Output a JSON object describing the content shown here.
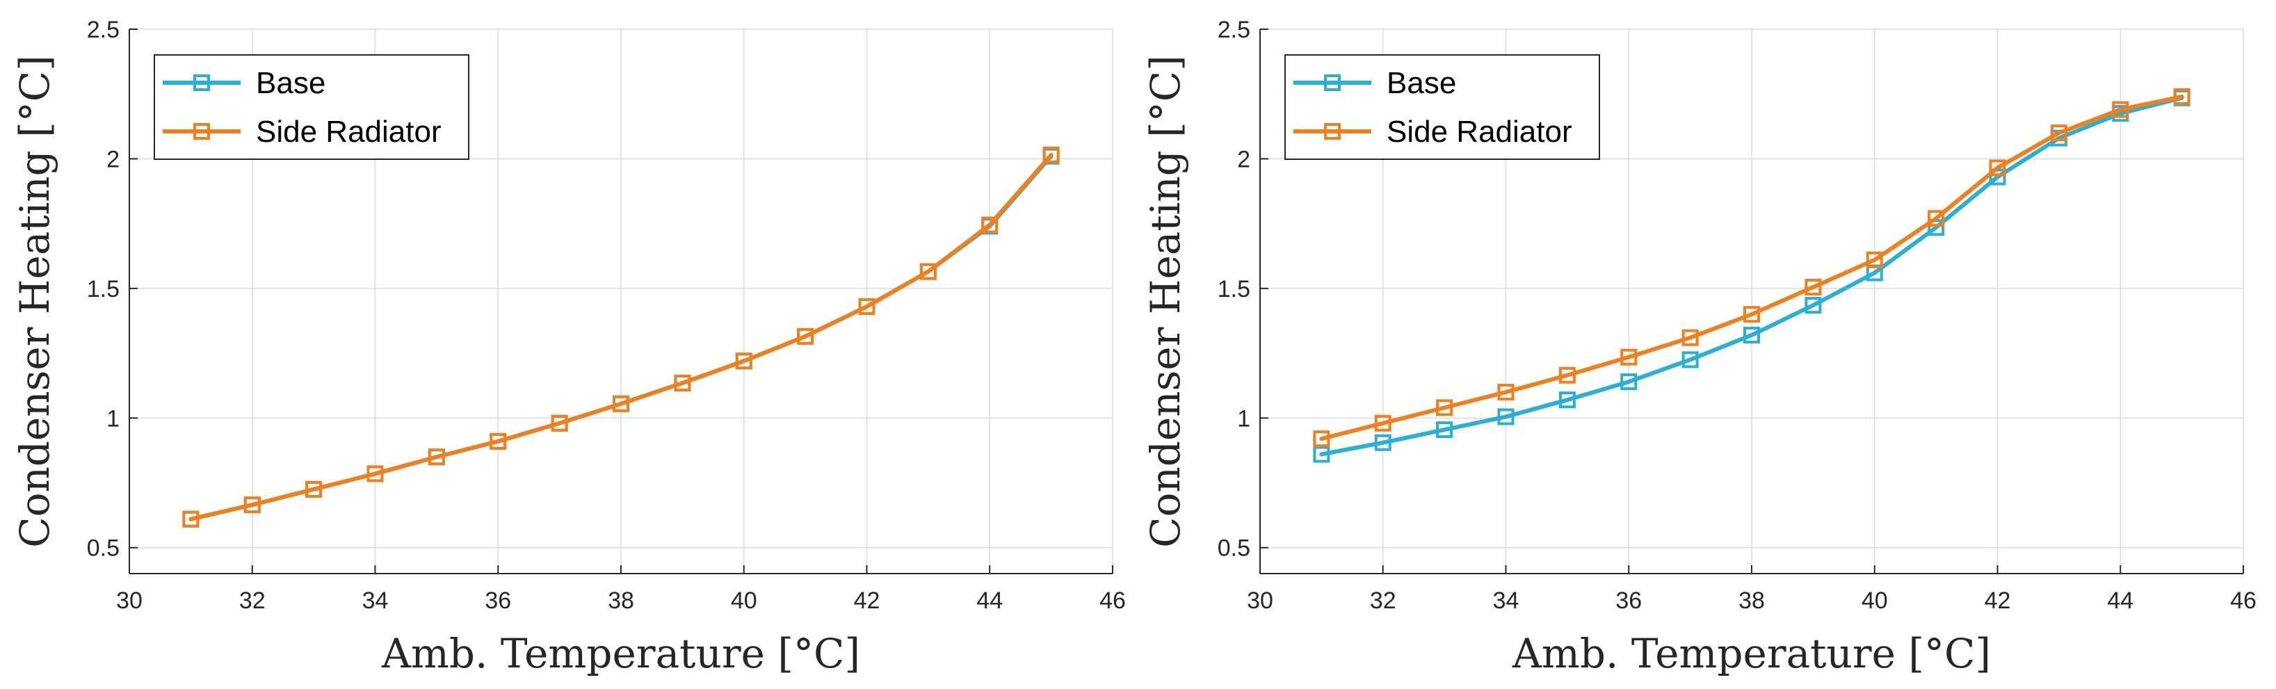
{
  "chart_data": [
    {
      "type": "line",
      "title": "",
      "xlabel": "Amb. Temperature [°C]",
      "ylabel": "Condenser Heating [°C]",
      "xlim": [
        30,
        46
      ],
      "ylim": [
        0.4,
        2.5
      ],
      "xticks": [
        30,
        32,
        34,
        36,
        38,
        40,
        42,
        44,
        46
      ],
      "yticks": [
        0.5,
        1,
        1.5,
        2,
        2.5
      ],
      "ytick_labels": [
        "0.5",
        "1",
        "1.5",
        "2",
        "2.5"
      ],
      "grid": true,
      "legend_position": "top-left",
      "x": [
        31,
        32,
        33,
        34,
        35,
        36,
        37,
        38,
        39,
        40,
        41,
        42,
        43,
        44,
        45
      ],
      "series": [
        {
          "name": "Base",
          "color": "#2ab0d4",
          "marker": "square",
          "values": [
            0.61,
            0.665,
            0.725,
            0.785,
            0.85,
            0.91,
            0.98,
            1.055,
            1.135,
            1.22,
            1.315,
            1.43,
            1.565,
            1.74,
            2.01
          ]
        },
        {
          "name": "Side Radiator",
          "color": "#f0801e",
          "marker": "square",
          "values": [
            0.61,
            0.665,
            0.725,
            0.785,
            0.85,
            0.91,
            0.98,
            1.055,
            1.135,
            1.22,
            1.315,
            1.43,
            1.565,
            1.745,
            2.015
          ]
        }
      ]
    },
    {
      "type": "line",
      "title": "",
      "xlabel": "Amb. Temperature [°C]",
      "ylabel": "Condenser Heating [°C]",
      "xlim": [
        30,
        46
      ],
      "ylim": [
        0.4,
        2.5
      ],
      "xticks": [
        30,
        32,
        34,
        36,
        38,
        40,
        42,
        44,
        46
      ],
      "yticks": [
        0.5,
        1,
        1.5,
        2,
        2.5
      ],
      "ytick_labels": [
        "0.5",
        "1",
        "1.5",
        "2",
        "2.5"
      ],
      "grid": true,
      "legend_position": "top-left",
      "x": [
        31,
        32,
        33,
        34,
        35,
        36,
        37,
        38,
        39,
        40,
        41,
        42,
        43,
        44,
        45
      ],
      "series": [
        {
          "name": "Base",
          "color": "#2ab0d4",
          "marker": "square",
          "values": [
            0.86,
            0.905,
            0.955,
            1.005,
            1.07,
            1.14,
            1.225,
            1.32,
            1.435,
            1.56,
            1.735,
            1.93,
            2.08,
            2.175,
            2.235
          ]
        },
        {
          "name": "Side Radiator",
          "color": "#f0801e",
          "marker": "square",
          "values": [
            0.92,
            0.98,
            1.04,
            1.1,
            1.165,
            1.235,
            1.31,
            1.4,
            1.505,
            1.61,
            1.77,
            1.965,
            2.1,
            2.19,
            2.24
          ]
        }
      ]
    }
  ]
}
